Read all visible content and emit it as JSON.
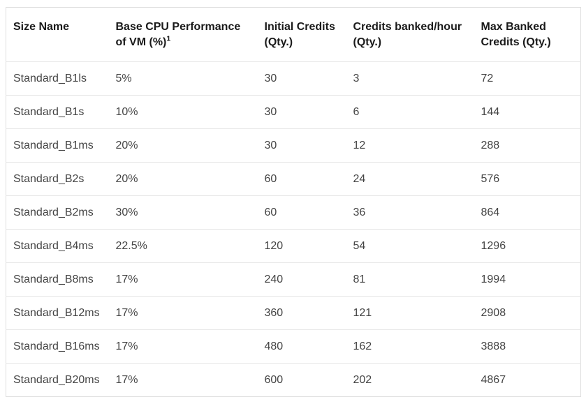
{
  "colors": {
    "background": "#ffffff",
    "outer_border": "#dedede",
    "row_divider": "#e6e6e6",
    "header_text": "#1a1a1a",
    "body_text": "#444444"
  },
  "table": {
    "columns": [
      {
        "label": "Size Name"
      },
      {
        "label": "Base CPU Performance of VM (%)",
        "sup": "1"
      },
      {
        "label": "Initial Credits (Qty.)"
      },
      {
        "label": "Credits banked/hour (Qty.)"
      },
      {
        "label": "Max Banked Credits (Qty.)"
      }
    ],
    "rows": [
      [
        "Standard_B1ls",
        "5%",
        "30",
        "3",
        "72"
      ],
      [
        "Standard_B1s",
        "10%",
        "30",
        "6",
        "144"
      ],
      [
        "Standard_B1ms",
        "20%",
        "30",
        "12",
        "288"
      ],
      [
        "Standard_B2s",
        "20%",
        "60",
        "24",
        "576"
      ],
      [
        "Standard_B2ms",
        "30%",
        "60",
        "36",
        "864"
      ],
      [
        "Standard_B4ms",
        "22.5%",
        "120",
        "54",
        "1296"
      ],
      [
        "Standard_B8ms",
        "17%",
        "240",
        "81",
        "1994"
      ],
      [
        "Standard_B12ms",
        "17%",
        "360",
        "121",
        "2908"
      ],
      [
        "Standard_B16ms",
        "17%",
        "480",
        "162",
        "3888"
      ],
      [
        "Standard_B20ms",
        "17%",
        "600",
        "202",
        "4867"
      ]
    ]
  }
}
